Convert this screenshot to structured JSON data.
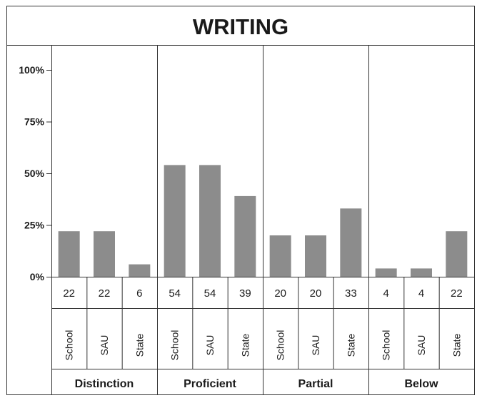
{
  "chart_data": {
    "type": "bar",
    "title": "WRITING",
    "ylim": [
      0,
      100
    ],
    "yticks": [
      {
        "value": 0,
        "label": "0%"
      },
      {
        "value": 25,
        "label": "25%"
      },
      {
        "value": 50,
        "label": "50%"
      },
      {
        "value": 75,
        "label": "75%"
      },
      {
        "value": 100,
        "label": "100%"
      }
    ],
    "groups": [
      {
        "name": "Distinction",
        "categories": [
          "School",
          "SAU",
          "State"
        ],
        "values": [
          22,
          22,
          6
        ]
      },
      {
        "name": "Proficient",
        "categories": [
          "School",
          "SAU",
          "State"
        ],
        "values": [
          54,
          54,
          39
        ]
      },
      {
        "name": "Partial",
        "categories": [
          "School",
          "SAU",
          "State"
        ],
        "values": [
          20,
          20,
          33
        ]
      },
      {
        "name": "Below",
        "categories": [
          "School",
          "SAU",
          "State"
        ],
        "values": [
          4,
          4,
          22
        ]
      }
    ],
    "bar_color": "#8c8c8c",
    "grid": false
  }
}
